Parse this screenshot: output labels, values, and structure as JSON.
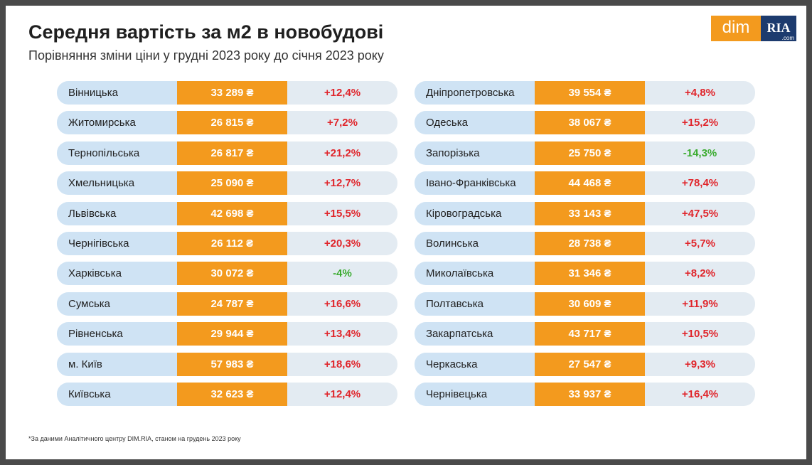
{
  "header": {
    "title": "Середня вартість за м2 в новобудові",
    "subtitle": "Порівняння зміни ціни у грудні 2023 року до січня 2023 року"
  },
  "logo": {
    "left": "dim",
    "right": "RIA",
    "domain": ".com"
  },
  "change_colors": {
    "up": "#e0252b",
    "down": "#3aab2f"
  },
  "tables": [
    {
      "rows": [
        [
          "Вінницька",
          "33 289 ₴",
          "+12,4%"
        ],
        [
          "Житомирська",
          "26 815 ₴",
          "+7,2%"
        ],
        [
          "Тернопільська",
          "26 817 ₴",
          "+21,2%"
        ],
        [
          "Хмельницька",
          "25 090 ₴",
          "+12,7%"
        ],
        [
          "Львівська",
          "42 698 ₴",
          "+15,5%"
        ],
        [
          "Чернігівська",
          "26 112 ₴",
          "+20,3%"
        ],
        [
          "Харківська",
          "30 072 ₴",
          "-4%"
        ],
        [
          "Сумська",
          "24 787 ₴",
          "+16,6%"
        ],
        [
          "Рівненська",
          "29 944 ₴",
          "+13,4%"
        ],
        [
          "м. Київ",
          "57 983 ₴",
          "+18,6%"
        ],
        [
          "Київська",
          "32 623 ₴",
          "+12,4%"
        ]
      ]
    },
    {
      "rows": [
        [
          "Дніпропетровська",
          "39 554 ₴",
          "+4,8%"
        ],
        [
          "Одеська",
          "38 067 ₴",
          "+15,2%"
        ],
        [
          "Запорізька",
          "25 750 ₴",
          "-14,3%"
        ],
        [
          "Івано-Франківська",
          "44 468 ₴",
          "+78,4%"
        ],
        [
          "Кіровоградська",
          "33 143 ₴",
          "+47,5%"
        ],
        [
          "Волинська",
          "28 738 ₴",
          "+5,7%"
        ],
        [
          "Миколаївська",
          "31 346 ₴",
          "+8,2%"
        ],
        [
          "Полтавська",
          "30 609 ₴",
          "+11,9%"
        ],
        [
          "Закарпатська",
          "43 717 ₴",
          "+10,5%"
        ],
        [
          "Черкаська",
          "27 547 ₴",
          "+9,3%"
        ],
        [
          "Чернівецька",
          "33 937 ₴",
          "+16,4%"
        ]
      ]
    }
  ],
  "footnote": "*За даними Аналітичного центру DIM.RIA, станом на грудень 2023 року"
}
